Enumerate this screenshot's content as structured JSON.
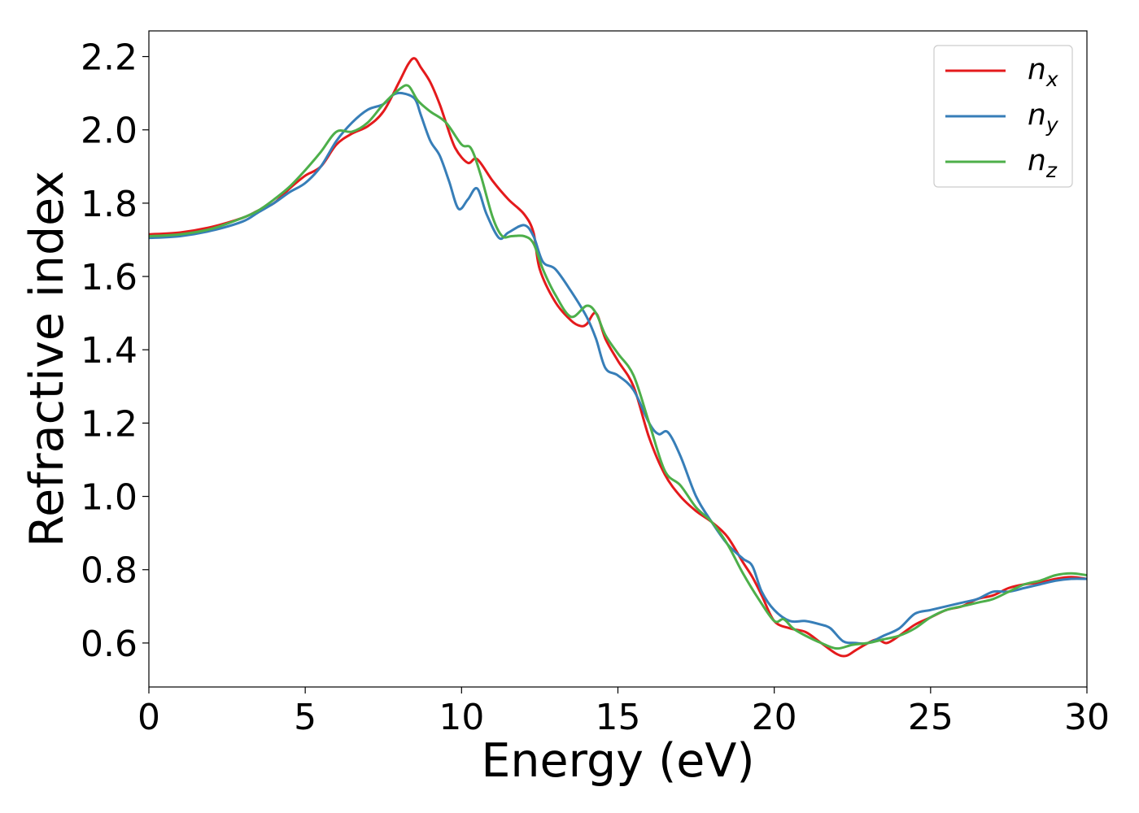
{
  "chart_data": {
    "type": "line",
    "title": "",
    "xlabel": "Energy (eV)",
    "ylabel": "Refractive index",
    "xlim": [
      0,
      30
    ],
    "ylim": [
      0.48,
      2.27
    ],
    "xticks": [
      0,
      5,
      10,
      15,
      20,
      25,
      30
    ],
    "xtick_labels": [
      "0",
      "5",
      "10",
      "15",
      "20",
      "25",
      "30"
    ],
    "yticks": [
      0.6,
      0.8,
      1.0,
      1.2,
      1.4,
      1.6,
      1.8,
      2.0,
      2.2
    ],
    "ytick_labels": [
      "0.6",
      "0.8",
      "1.0",
      "1.2",
      "1.4",
      "1.6",
      "1.8",
      "2.0",
      "2.2"
    ],
    "grid": false,
    "legend_position": "top-right",
    "series": [
      {
        "name": "n_x",
        "label_base": "n",
        "label_sub": "x",
        "color": "#e41a1c",
        "x": [
          0,
          1,
          2,
          3,
          3.5,
          4,
          4.5,
          5,
          5.5,
          6,
          6.5,
          7,
          7.5,
          8,
          8.3,
          8.5,
          8.7,
          9,
          9.3,
          9.5,
          9.8,
          10.2,
          10.5,
          11,
          11.5,
          12,
          12.3,
          12.5,
          13,
          13.5,
          13.8,
          14,
          14.3,
          14.6,
          15,
          15.5,
          16,
          16.5,
          17,
          17.5,
          18,
          18.5,
          19,
          19.3,
          19.6,
          20,
          20.5,
          21,
          21.5,
          22,
          22.3,
          22.6,
          23,
          23.3,
          23.6,
          24,
          24.5,
          25,
          25.5,
          26,
          26.5,
          27,
          27.5,
          28,
          28.5,
          29,
          29.5,
          30
        ],
        "y": [
          1.715,
          1.72,
          1.735,
          1.76,
          1.78,
          1.8,
          1.84,
          1.875,
          1.9,
          1.96,
          1.99,
          2.01,
          2.05,
          2.13,
          2.18,
          2.195,
          2.17,
          2.13,
          2.07,
          2.02,
          1.95,
          1.91,
          1.92,
          1.86,
          1.81,
          1.77,
          1.72,
          1.62,
          1.53,
          1.48,
          1.465,
          1.47,
          1.5,
          1.43,
          1.37,
          1.3,
          1.16,
          1.06,
          1.0,
          0.96,
          0.93,
          0.89,
          0.82,
          0.78,
          0.73,
          0.66,
          0.64,
          0.63,
          0.6,
          0.57,
          0.565,
          0.58,
          0.6,
          0.61,
          0.6,
          0.62,
          0.65,
          0.67,
          0.69,
          0.7,
          0.72,
          0.73,
          0.75,
          0.76,
          0.765,
          0.775,
          0.78,
          0.775
        ]
      },
      {
        "name": "n_y",
        "label_base": "n",
        "label_sub": "y",
        "color": "#377eb8",
        "x": [
          0,
          1,
          2,
          3,
          3.5,
          4,
          4.5,
          5,
          5.5,
          6,
          6.5,
          7,
          7.5,
          7.8,
          8.1,
          8.5,
          8.7,
          9,
          9.3,
          9.6,
          9.9,
          10.2,
          10.5,
          10.8,
          11.2,
          11.5,
          12,
          12.3,
          12.6,
          13,
          13.5,
          14,
          14.3,
          14.6,
          15,
          15.5,
          16,
          16.3,
          16.6,
          17,
          17.5,
          18,
          18.5,
          19,
          19.3,
          19.6,
          20,
          20.5,
          21,
          21.5,
          21.8,
          22.2,
          22.6,
          23,
          23.5,
          24,
          24.5,
          25,
          25.5,
          26,
          26.5,
          27,
          27.5,
          28,
          28.5,
          29,
          29.5,
          30
        ],
        "y": [
          1.705,
          1.71,
          1.725,
          1.75,
          1.775,
          1.8,
          1.83,
          1.855,
          1.9,
          1.97,
          2.02,
          2.055,
          2.07,
          2.095,
          2.1,
          2.085,
          2.04,
          1.97,
          1.93,
          1.86,
          1.785,
          1.81,
          1.84,
          1.77,
          1.705,
          1.72,
          1.74,
          1.71,
          1.64,
          1.62,
          1.56,
          1.49,
          1.43,
          1.35,
          1.33,
          1.29,
          1.2,
          1.17,
          1.175,
          1.11,
          1.0,
          0.93,
          0.87,
          0.83,
          0.81,
          0.74,
          0.69,
          0.66,
          0.66,
          0.65,
          0.64,
          0.605,
          0.6,
          0.6,
          0.62,
          0.64,
          0.68,
          0.69,
          0.7,
          0.71,
          0.72,
          0.74,
          0.74,
          0.75,
          0.76,
          0.77,
          0.775,
          0.775
        ]
      },
      {
        "name": "n_z",
        "label_base": "n",
        "label_sub": "z",
        "color": "#4daf4a",
        "x": [
          0,
          1,
          2,
          3,
          3.5,
          4,
          4.5,
          5,
          5.5,
          6,
          6.5,
          7,
          7.5,
          8,
          8.3,
          8.6,
          9,
          9.5,
          10,
          10.3,
          10.6,
          11,
          11.3,
          11.6,
          12,
          12.3,
          12.6,
          13,
          13.5,
          14,
          14.3,
          14.6,
          15,
          15.5,
          16,
          16.5,
          17,
          17.5,
          18,
          18.5,
          19,
          19.5,
          20,
          20.3,
          20.6,
          21,
          21.5,
          22,
          22.5,
          23,
          23.5,
          24,
          24.5,
          25,
          25.5,
          26,
          26.5,
          27,
          27.5,
          28,
          28.5,
          29,
          29.5,
          30
        ],
        "y": [
          1.71,
          1.715,
          1.73,
          1.76,
          1.78,
          1.81,
          1.845,
          1.89,
          1.94,
          1.995,
          1.995,
          2.02,
          2.07,
          2.11,
          2.12,
          2.08,
          2.05,
          2.02,
          1.96,
          1.95,
          1.88,
          1.76,
          1.71,
          1.71,
          1.71,
          1.69,
          1.62,
          1.55,
          1.49,
          1.52,
          1.5,
          1.44,
          1.39,
          1.33,
          1.2,
          1.07,
          1.03,
          0.97,
          0.93,
          0.87,
          0.79,
          0.72,
          0.66,
          0.665,
          0.64,
          0.62,
          0.6,
          0.585,
          0.595,
          0.6,
          0.61,
          0.62,
          0.64,
          0.67,
          0.69,
          0.7,
          0.71,
          0.72,
          0.74,
          0.76,
          0.77,
          0.785,
          0.79,
          0.785
        ]
      }
    ]
  }
}
